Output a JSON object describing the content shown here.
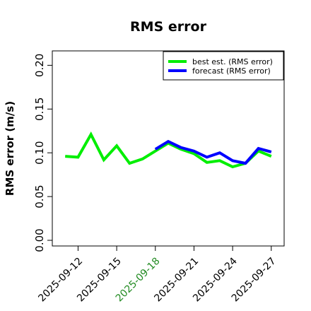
{
  "chart_data": {
    "type": "line",
    "title": "RMS error",
    "xlabel": "",
    "ylabel": "RMS error (m/s)",
    "xlim": [
      "2025-09-10T00:00",
      "2025-09-28T00:00"
    ],
    "ylim": [
      0.0,
      0.21
    ],
    "y_ticks": [
      0.0,
      0.05,
      0.1,
      0.15,
      0.2
    ],
    "y_tick_labels": [
      "0.00",
      "0.05",
      "0.10",
      "0.15",
      "0.20"
    ],
    "x_ticks": [
      "2025-09-12",
      "2025-09-15",
      "2025-09-18",
      "2025-09-21",
      "2025-09-24",
      "2025-09-27"
    ],
    "x_tick_labels": [
      "2025-09-12",
      "2025-09-15",
      "2025-09-18",
      "2025-09-21",
      "2025-09-24",
      "2025-09-27"
    ],
    "x_tick_colors": [
      "#000000",
      "#000000",
      "#228b22",
      "#000000",
      "#000000",
      "#000000"
    ],
    "grid": false,
    "legend_position": "top-right",
    "series": [
      {
        "name": "best est. (RMS error)",
        "color": "#00ee00",
        "x": [
          "2025-09-11",
          "2025-09-12",
          "2025-09-13",
          "2025-09-14",
          "2025-09-15",
          "2025-09-16",
          "2025-09-17",
          "2025-09-18",
          "2025-09-19",
          "2025-09-20",
          "2025-09-21",
          "2025-09-22",
          "2025-09-23",
          "2025-09-24",
          "2025-09-25",
          "2025-09-26",
          "2025-09-27"
        ],
        "values": [
          0.096,
          0.095,
          0.121,
          0.092,
          0.108,
          0.088,
          0.093,
          0.102,
          0.111,
          0.104,
          0.099,
          0.089,
          0.091,
          0.084,
          0.088,
          0.102,
          0.096
        ]
      },
      {
        "name": "forecast (RMS error)",
        "color": "#0000ff",
        "x": [
          "2025-09-18",
          "2025-09-19",
          "2025-09-20",
          "2025-09-21",
          "2025-09-22",
          "2025-09-23",
          "2025-09-24",
          "2025-09-25",
          "2025-09-26",
          "2025-09-27"
        ],
        "values": [
          0.104,
          0.113,
          0.106,
          0.102,
          0.095,
          0.1,
          0.091,
          0.088,
          0.105,
          0.101
        ]
      }
    ]
  }
}
